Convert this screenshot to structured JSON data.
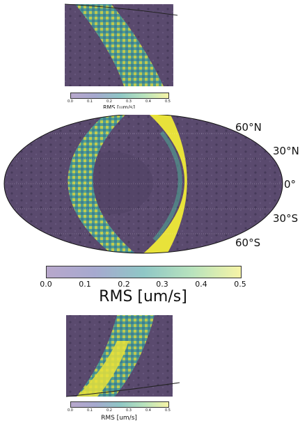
{
  "top_panel": {
    "colorbar": {
      "label": "RMS [um/s]",
      "ticks": [
        "0.0",
        "0.1",
        "0.2",
        "0.3",
        "0.4",
        "0.5"
      ]
    }
  },
  "main_map": {
    "projection": "mollweide",
    "latitude_labels": [
      "60°N",
      "30°N",
      "0°",
      "30°S",
      "60°S"
    ],
    "colorbar": {
      "label": "RMS [um/s]",
      "ticks": [
        "0.0",
        "0.1",
        "0.2",
        "0.3",
        "0.4",
        "0.5"
      ],
      "range": [
        0.0,
        0.5
      ],
      "colormap": [
        "#440154",
        "#3b528b",
        "#21918c",
        "#5ec962",
        "#fde725"
      ]
    }
  },
  "bottom_panel": {
    "colorbar": {
      "label": "RMS [um/s]",
      "ticks": [
        "0.0",
        "0.1",
        "0.2",
        "0.3",
        "0.4",
        "0.5"
      ]
    }
  },
  "colors": {
    "background_map": "#5a4a6e",
    "crater_shade": "#3f3452",
    "track_yellow": "#e8e23a",
    "track_green": "#4fa592",
    "track_blue": "#2f6f98"
  }
}
